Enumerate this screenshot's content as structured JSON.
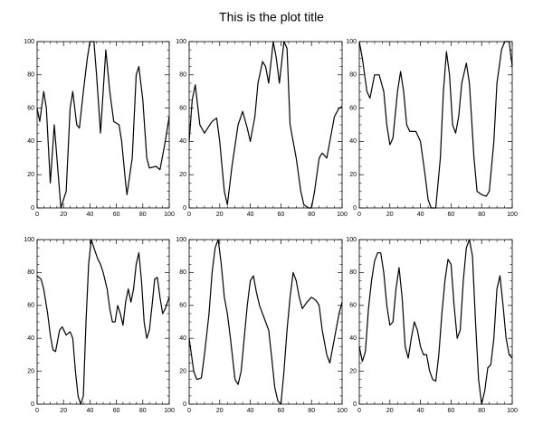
{
  "title": "This is the plot title",
  "chart_data": [
    {
      "type": "line",
      "color": "#000000",
      "xlim": [
        0,
        100
      ],
      "ylim": [
        0,
        100
      ],
      "xticks": [
        0,
        20,
        40,
        60,
        80,
        100
      ],
      "yticks": [
        0,
        20,
        40,
        60,
        80,
        100
      ],
      "x": [
        0,
        2,
        5,
        7,
        10,
        13,
        15,
        18,
        20,
        22,
        25,
        27,
        30,
        32,
        35,
        38,
        40,
        43,
        45,
        48,
        52,
        55,
        58,
        62,
        64,
        67,
        68,
        72,
        75,
        77,
        80,
        83,
        85,
        90,
        93,
        97,
        100
      ],
      "values": [
        60,
        52,
        70,
        60,
        15,
        50,
        30,
        0,
        5,
        10,
        60,
        70,
        50,
        48,
        70,
        90,
        100,
        100,
        80,
        45,
        95,
        70,
        52,
        50,
        40,
        15,
        8,
        30,
        80,
        85,
        65,
        30,
        24,
        25,
        23,
        40,
        55
      ]
    },
    {
      "type": "line",
      "color": "#000000",
      "xlim": [
        0,
        100
      ],
      "ylim": [
        0,
        100
      ],
      "xticks": [
        0,
        20,
        40,
        60,
        80,
        100
      ],
      "yticks": [
        0,
        20,
        40,
        60,
        80,
        100
      ],
      "x": [
        0,
        2,
        4,
        7,
        10,
        15,
        18,
        20,
        23,
        25,
        28,
        32,
        35,
        38,
        40,
        43,
        45,
        48,
        50,
        52,
        55,
        57,
        59,
        62,
        64,
        66,
        70,
        73,
        75,
        78,
        80,
        82,
        85,
        87,
        90,
        93,
        95,
        98,
        100
      ],
      "values": [
        40,
        65,
        74,
        50,
        45,
        52,
        54,
        40,
        10,
        2,
        25,
        50,
        58,
        48,
        40,
        55,
        75,
        88,
        85,
        75,
        100,
        90,
        75,
        100,
        96,
        50,
        30,
        10,
        2,
        0,
        0,
        10,
        30,
        33,
        30,
        45,
        55,
        60,
        61
      ]
    },
    {
      "type": "line",
      "color": "#000000",
      "xlim": [
        0,
        100
      ],
      "ylim": [
        0,
        100
      ],
      "xticks": [
        0,
        20,
        40,
        60,
        80,
        100
      ],
      "yticks": [
        0,
        20,
        40,
        60,
        80,
        100
      ],
      "x": [
        0,
        2,
        5,
        7,
        10,
        13,
        16,
        18,
        20,
        22,
        25,
        27,
        29,
        31,
        33,
        37,
        40,
        43,
        45,
        47,
        50,
        53,
        55,
        57,
        59,
        61,
        63,
        65,
        67,
        70,
        72,
        75,
        77,
        80,
        83,
        85,
        88,
        90,
        93,
        95,
        98,
        100
      ],
      "values": [
        100,
        90,
        70,
        66,
        80,
        80,
        70,
        50,
        38,
        42,
        70,
        82,
        70,
        50,
        46,
        46,
        40,
        20,
        5,
        0,
        0,
        30,
        70,
        94,
        80,
        50,
        45,
        55,
        75,
        87,
        75,
        30,
        10,
        8,
        7,
        10,
        40,
        75,
        95,
        100,
        100,
        85
      ]
    },
    {
      "type": "line",
      "color": "#000000",
      "xlim": [
        0,
        100
      ],
      "ylim": [
        0,
        100
      ],
      "xticks": [
        0,
        20,
        40,
        60,
        80,
        100
      ],
      "yticks": [
        0,
        20,
        40,
        60,
        80,
        100
      ],
      "x": [
        0,
        3,
        5,
        8,
        10,
        12,
        14,
        17,
        19,
        22,
        25,
        27,
        29,
        31,
        33,
        35,
        37,
        39,
        41,
        43,
        46,
        48,
        50,
        53,
        55,
        57,
        59,
        61,
        63,
        65,
        67,
        69,
        71,
        73,
        75,
        77,
        79,
        81,
        83,
        85,
        87,
        89,
        91,
        93,
        95,
        97,
        100
      ],
      "values": [
        78,
        76,
        70,
        55,
        42,
        33,
        32,
        45,
        47,
        42,
        44,
        40,
        20,
        5,
        0,
        5,
        50,
        85,
        100,
        95,
        88,
        85,
        80,
        70,
        58,
        50,
        50,
        60,
        55,
        48,
        62,
        70,
        62,
        70,
        85,
        92,
        75,
        50,
        40,
        45,
        60,
        76,
        77,
        65,
        55,
        58,
        65
      ]
    },
    {
      "type": "line",
      "color": "#000000",
      "xlim": [
        0,
        100
      ],
      "ylim": [
        0,
        100
      ],
      "xticks": [
        0,
        20,
        40,
        60,
        80,
        100
      ],
      "yticks": [
        0,
        20,
        40,
        60,
        80,
        100
      ],
      "x": [
        0,
        3,
        5,
        8,
        10,
        13,
        15,
        17,
        19,
        21,
        23,
        25,
        27,
        30,
        32,
        34,
        36,
        38,
        40,
        42,
        44,
        46,
        48,
        50,
        52,
        54,
        56,
        58,
        60,
        62,
        64,
        66,
        68,
        70,
        72,
        74,
        77,
        80,
        83,
        85,
        87,
        90,
        92,
        95,
        98,
        100
      ],
      "values": [
        40,
        20,
        15,
        16,
        30,
        55,
        80,
        95,
        100,
        85,
        65,
        55,
        40,
        15,
        12,
        20,
        40,
        60,
        75,
        78,
        68,
        60,
        55,
        50,
        45,
        28,
        10,
        2,
        0,
        20,
        45,
        65,
        80,
        75,
        65,
        58,
        62,
        65,
        63,
        60,
        45,
        30,
        25,
        40,
        55,
        62
      ]
    },
    {
      "type": "line",
      "color": "#000000",
      "xlim": [
        0,
        100
      ],
      "ylim": [
        0,
        100
      ],
      "xticks": [
        0,
        20,
        40,
        60,
        80,
        100
      ],
      "yticks": [
        0,
        20,
        40,
        60,
        80,
        100
      ],
      "x": [
        0,
        2,
        4,
        6,
        8,
        10,
        12,
        14,
        16,
        18,
        20,
        22,
        24,
        26,
        28,
        30,
        32,
        34,
        36,
        38,
        40,
        42,
        44,
        46,
        48,
        50,
        52,
        54,
        56,
        58,
        60,
        62,
        64,
        66,
        68,
        70,
        72,
        74,
        76,
        78,
        80,
        82,
        84,
        86,
        88,
        90,
        92,
        94,
        96,
        98,
        100
      ],
      "values": [
        35,
        26,
        32,
        58,
        75,
        87,
        92,
        92,
        80,
        60,
        48,
        50,
        70,
        83,
        65,
        35,
        28,
        40,
        50,
        45,
        35,
        30,
        30,
        20,
        15,
        14,
        30,
        55,
        75,
        88,
        85,
        60,
        40,
        45,
        75,
        95,
        100,
        90,
        50,
        15,
        0,
        8,
        22,
        24,
        40,
        70,
        78,
        60,
        40,
        30,
        28
      ]
    }
  ]
}
